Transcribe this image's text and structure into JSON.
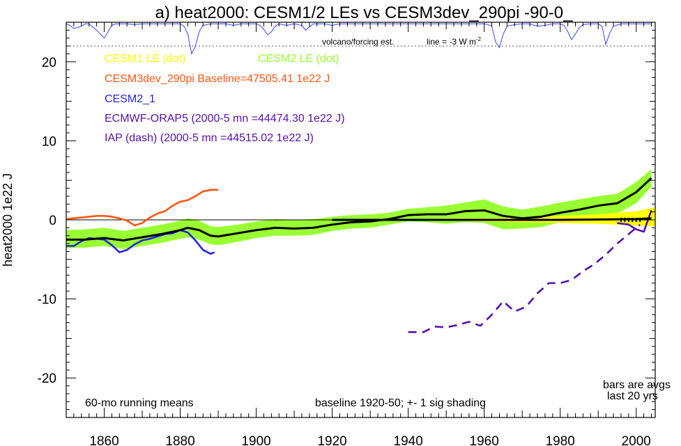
{
  "chart_data": {
    "type": "line",
    "title": "a) heat2000: CESM1/2 LEs vs CESM3dev_290pi -90-0_",
    "ylabel": "heat2000 1e22 J",
    "xlim": [
      1850,
      2005
    ],
    "ylim": [
      -25,
      25
    ],
    "x_ticks": [
      1860,
      1880,
      1900,
      1920,
      1940,
      1960,
      1980,
      2000
    ],
    "y_ticks": [
      -20,
      -10,
      0,
      10,
      20
    ],
    "grid": false,
    "legend": [
      {
        "label": "CESM1 LE (dot)",
        "color": "#ffff00"
      },
      {
        "label": "CESM2 LE (dot)",
        "color": "#99ff33"
      },
      {
        "label": "CESM3dev_290pi Baseline=47505.41 1e22 J",
        "color": "#ff5511"
      },
      {
        "label": "CESM2_1",
        "color": "#2222dd"
      },
      {
        "label": "ECMWF-ORAP5 (2000-5 mn =44474.30 1e22 J)",
        "color": "#5511aa"
      },
      {
        "label": "IAP (dash) (2000-5 mn =44515.02 1e22 J)",
        "color": "#5511aa"
      }
    ],
    "annotations": {
      "volcano_label": "volcano/forcing est.",
      "line_label": "line = -3 W m",
      "line_label_sup": "-2",
      "running_mean": "60-mo running means",
      "baseline_note": "baseline 1920-50; +- 1 sig shading",
      "bars_note_1": "bars are avgs",
      "bars_note_2": "last 20 yrs"
    },
    "series": [
      {
        "key": "cesm2_mean",
        "color": "#000000",
        "x": [
          1850,
          1855,
          1860,
          1865,
          1870,
          1875,
          1880,
          1882,
          1885,
          1888,
          1890,
          1895,
          1900,
          1905,
          1910,
          1915,
          1920,
          1925,
          1930,
          1935,
          1940,
          1945,
          1950,
          1955,
          1960,
          1965,
          1970,
          1975,
          1980,
          1985,
          1990,
          1995,
          2000,
          2004
        ],
        "y": [
          -2.5,
          -2.5,
          -2.3,
          -2.6,
          -2.2,
          -1.8,
          -1.3,
          -1.0,
          -1.3,
          -2.0,
          -2.1,
          -1.7,
          -1.3,
          -1.0,
          -1.1,
          -1.0,
          -0.6,
          -0.3,
          -0.2,
          0.1,
          0.6,
          0.7,
          0.7,
          1.1,
          1.2,
          0.5,
          0.2,
          0.4,
          0.9,
          1.3,
          1.8,
          2.1,
          3.5,
          5.3
        ]
      },
      {
        "key": "cesm2_band",
        "color": "#99ff33",
        "x": [
          1850,
          1855,
          1860,
          1865,
          1870,
          1875,
          1880,
          1882,
          1885,
          1888,
          1890,
          1895,
          1900,
          1905,
          1910,
          1915,
          1920,
          1925,
          1930,
          1935,
          1940,
          1945,
          1950,
          1955,
          1960,
          1965,
          1970,
          1975,
          1980,
          1985,
          1990,
          1995,
          2000,
          2004
        ],
        "low": [
          -3.6,
          -3.5,
          -3.3,
          -3.7,
          -3.3,
          -2.9,
          -2.4,
          -2.2,
          -2.5,
          -3.1,
          -3.2,
          -2.8,
          -2.3,
          -2.0,
          -2.0,
          -1.9,
          -1.4,
          -1.1,
          -1.0,
          -0.6,
          -0.2,
          -0.3,
          -0.5,
          -0.3,
          -0.4,
          -1.2,
          -1.1,
          -0.9,
          -0.3,
          0.0,
          0.5,
          0.8,
          2.1,
          4.2
        ],
        "high": [
          -1.3,
          -1.2,
          -1.0,
          -1.4,
          -1.0,
          -0.6,
          -0.1,
          0.2,
          -0.1,
          -0.8,
          -0.9,
          -0.6,
          -0.2,
          0.1,
          0.0,
          0.1,
          0.4,
          0.6,
          0.7,
          0.9,
          1.4,
          1.6,
          1.8,
          2.2,
          2.6,
          1.7,
          1.3,
          1.7,
          2.2,
          2.6,
          3.0,
          3.3,
          4.8,
          6.4
        ]
      },
      {
        "key": "cesm1_band",
        "color": "#ffff00",
        "x": [
          1920,
          1930,
          1940,
          1950,
          1960,
          1970,
          1980,
          1990,
          2000,
          2005
        ],
        "low": [
          -0.1,
          -0.1,
          -0.1,
          -0.1,
          -0.2,
          -0.3,
          -0.4,
          -0.5,
          -0.7,
          -0.8
        ],
        "high": [
          0.1,
          0.1,
          0.1,
          0.2,
          0.2,
          0.3,
          0.5,
          0.7,
          1.1,
          1.6
        ]
      },
      {
        "key": "cesm1_mean",
        "color": "#000000",
        "x": [
          1920,
          1940,
          1960,
          1980,
          2000,
          2004
        ],
        "y": [
          0.0,
          0.0,
          0.0,
          0.0,
          0.1,
          0.2
        ]
      },
      {
        "key": "cesm3dev",
        "color": "#ff5511",
        "x": [
          1850,
          1852,
          1854,
          1856,
          1858,
          1860,
          1862,
          1864,
          1866,
          1868,
          1870,
          1872,
          1874,
          1876,
          1878,
          1880,
          1882,
          1884,
          1886,
          1888,
          1890
        ],
        "y": [
          0.1,
          0.2,
          0.3,
          0.4,
          0.5,
          0.5,
          0.4,
          0.2,
          -0.1,
          -0.7,
          -0.4,
          0.3,
          0.8,
          1.1,
          1.8,
          2.3,
          2.5,
          3.0,
          3.6,
          3.8,
          3.8
        ]
      },
      {
        "key": "cesm2_1",
        "color": "#2222dd",
        "x": [
          1850,
          1852,
          1854,
          1856,
          1858,
          1860,
          1862,
          1864,
          1866,
          1868,
          1870,
          1872,
          1874,
          1876,
          1878,
          1880,
          1882,
          1884,
          1886,
          1888,
          1889
        ],
        "y": [
          -3.3,
          -3.3,
          -2.7,
          -2.3,
          -2.4,
          -2.5,
          -3.2,
          -4.1,
          -3.8,
          -3.1,
          -2.6,
          -2.4,
          -2.1,
          -1.8,
          -1.7,
          -1.3,
          -1.6,
          -2.6,
          -3.8,
          -4.3,
          -4.1
        ]
      },
      {
        "key": "iap",
        "color": "#5511aa",
        "dash": true,
        "x": [
          1940,
          1944,
          1947,
          1950,
          1953,
          1956,
          1959,
          1962,
          1965,
          1968,
          1971,
          1974,
          1977,
          1980,
          1983,
          1986,
          1989,
          1992,
          1995,
          1998,
          2001
        ],
        "y": [
          -14.2,
          -14.2,
          -13.5,
          -13.6,
          -13.3,
          -12.9,
          -13.4,
          -12.0,
          -10.3,
          -11.6,
          -11.0,
          -9.3,
          -8.0,
          -8.0,
          -7.6,
          -6.5,
          -5.6,
          -4.4,
          -3.0,
          -1.8,
          -0.6
        ]
      },
      {
        "key": "orap5",
        "color": "#5511aa",
        "x": [
          1995,
          1998,
          2000,
          2002,
          2004
        ],
        "y": [
          -0.4,
          -0.6,
          -1.2,
          -1.5,
          1.2
        ]
      }
    ],
    "volcano": {
      "color": "#3344ff",
      "baseline_y": 24.8,
      "line_y": 22.0,
      "x": [
        1850,
        1851,
        1852,
        1854,
        1855,
        1856,
        1858,
        1860,
        1861,
        1862,
        1863,
        1864,
        1866,
        1868,
        1870,
        1872,
        1874,
        1876,
        1878,
        1880,
        1881,
        1882,
        1883,
        1884,
        1885,
        1886,
        1888,
        1890,
        1892,
        1894,
        1896,
        1898,
        1900,
        1901,
        1902,
        1903,
        1904,
        1905,
        1906,
        1908,
        1910,
        1912,
        1913,
        1914,
        1915,
        1916,
        1918,
        1920,
        1922,
        1924,
        1926,
        1928,
        1930,
        1932,
        1934,
        1936,
        1938,
        1940,
        1942,
        1944,
        1946,
        1948,
        1950,
        1952,
        1954,
        1956,
        1958,
        1960,
        1961,
        1962,
        1963,
        1964,
        1965,
        1966,
        1968,
        1970,
        1972,
        1974,
        1976,
        1978,
        1980,
        1981,
        1982,
        1983,
        1984,
        1985,
        1986,
        1988,
        1990,
        1991,
        1992,
        1993,
        1994,
        1996,
        1998,
        2000,
        2002,
        2004
      ],
      "y": [
        24.8,
        24.6,
        24.2,
        24.5,
        24.8,
        24.8,
        24.0,
        23.0,
        23.8,
        24.6,
        24.8,
        24.8,
        24.8,
        24.7,
        24.8,
        24.8,
        24.8,
        24.8,
        24.8,
        24.8,
        24.5,
        23.5,
        21.0,
        22.0,
        23.8,
        24.6,
        24.8,
        24.8,
        24.8,
        24.6,
        24.8,
        24.8,
        24.8,
        24.6,
        24.1,
        23.4,
        23.8,
        24.5,
        24.8,
        24.6,
        24.8,
        24.6,
        24.0,
        24.4,
        24.8,
        24.8,
        24.8,
        24.6,
        24.8,
        24.8,
        24.8,
        24.8,
        24.8,
        24.8,
        24.8,
        24.8,
        24.8,
        24.8,
        24.8,
        24.8,
        24.8,
        24.8,
        24.8,
        24.8,
        24.8,
        24.8,
        24.8,
        24.8,
        24.7,
        24.5,
        22.5,
        21.8,
        23.5,
        24.5,
        24.7,
        24.8,
        24.8,
        24.5,
        24.6,
        24.8,
        24.8,
        24.6,
        23.8,
        22.8,
        23.5,
        24.3,
        24.7,
        24.8,
        24.8,
        24.5,
        22.2,
        23.6,
        24.5,
        24.8,
        24.8,
        24.8,
        24.8,
        24.8
      ]
    }
  }
}
